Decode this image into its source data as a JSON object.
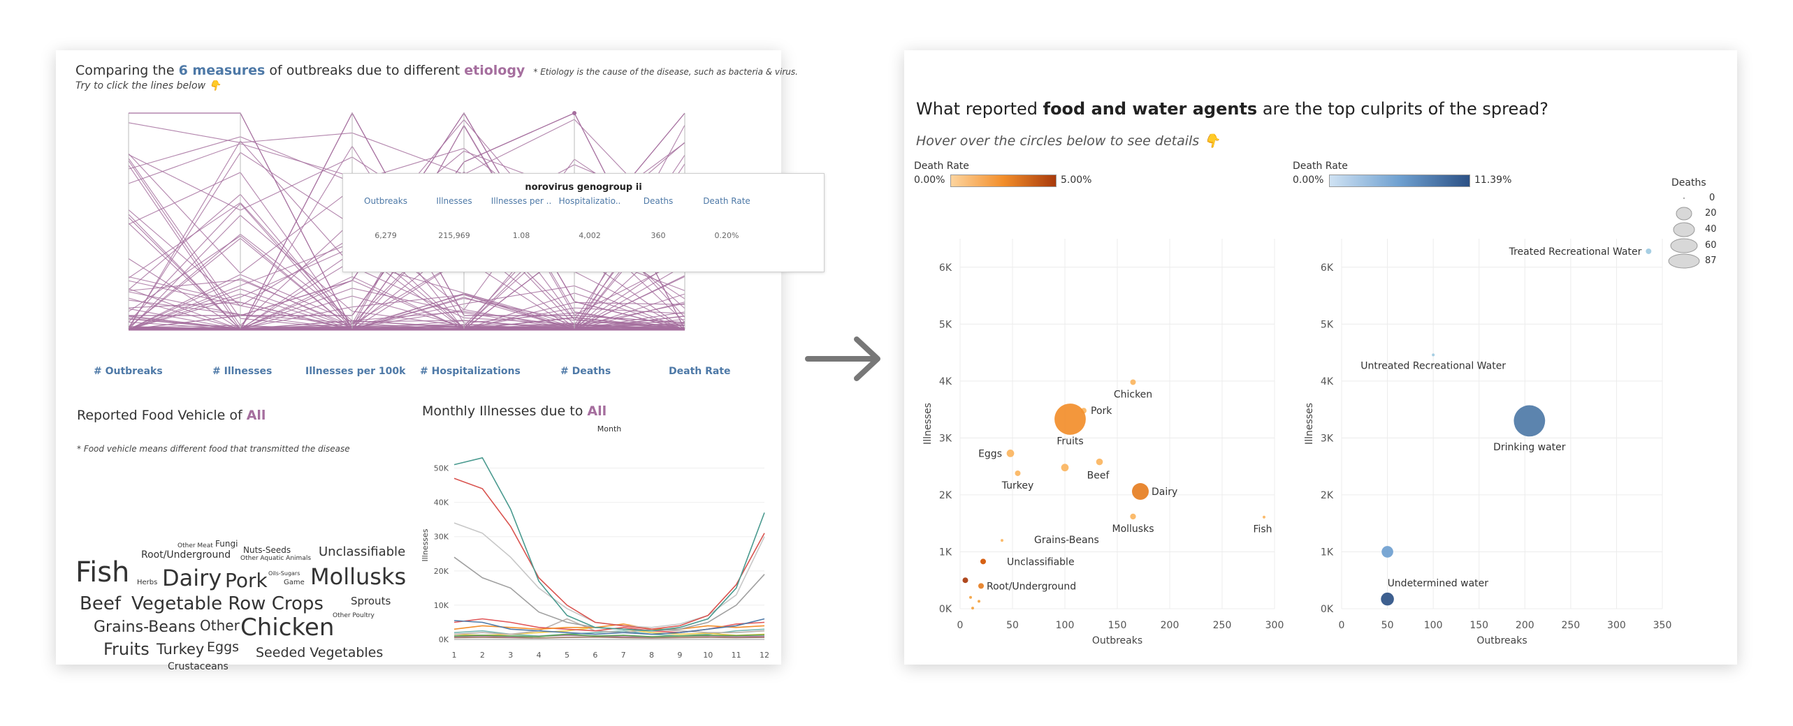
{
  "left": {
    "header": {
      "p1": "Comparing the ",
      "hl1": "6 measures",
      "p2": " of outbreaks due to different ",
      "hl2": "etiology",
      "note": "* Etiology is the cause of the disease, such as bacteria & virus.",
      "hint": "Try to click the lines below 👇"
    },
    "parallel_axes": [
      "# Outbreaks",
      "# Illnesses",
      "Illnesses per 100k",
      "# Hospitalizations",
      "# Deaths",
      "Death Rate"
    ],
    "tooltip": {
      "title": "norovirus genogroup ii",
      "columns": [
        {
          "label": "Outbreaks",
          "value": "6,279"
        },
        {
          "label": "Illnesses",
          "value": "215,969"
        },
        {
          "label": "Illnesses per ..",
          "value": "1.08"
        },
        {
          "label": "Hospitalizatio..",
          "value": "4,002"
        },
        {
          "label": "Deaths",
          "value": "360"
        },
        {
          "label": "Death Rate",
          "value": "0.20%"
        }
      ]
    },
    "food_vehicle": {
      "title_prefix": "Reported Food Vehicle of ",
      "title_value": "All",
      "note": "* Food vehicle means different food that transmitted the disease",
      "words": [
        "Fish",
        "Dairy",
        "Pork",
        "Mollusks",
        "Beef",
        "Vegetable Row Crops",
        "Chicken",
        "Grains-Beans",
        "Other",
        "Fruits",
        "Turkey",
        "Eggs",
        "Seeded Vegetables",
        "Crustaceans",
        "Unclassifiable",
        "Root/Underground",
        "Sprouts",
        "Other Meat",
        "Fungi",
        "Nuts-Seeds",
        "Other Aquatic Animals",
        "Herbs",
        "Oils-Sugars",
        "Game",
        "Other Poultry"
      ]
    },
    "monthly": {
      "title_prefix": "Monthly Illnesses due to ",
      "title_value": "All"
    }
  },
  "right": {
    "title_pre": "What reported ",
    "title_bold": "food and water agents",
    "title_post": " are the top culprits of the spread?",
    "subtitle": "Hover over the circles below to see details 👇",
    "legend_orange": {
      "title": "Death Rate",
      "min": "0.00%",
      "max": "5.00%"
    },
    "legend_blue": {
      "title": "Death Rate",
      "min": "0.00%",
      "max": "11.39%"
    },
    "deaths_legend": {
      "title": "Deaths",
      "values": [
        "0",
        "20",
        "40",
        "60",
        "87"
      ]
    }
  },
  "colors": {
    "orange": "#f28e2b",
    "blue": "#4e79a7",
    "purple": "#a56e9e"
  },
  "chart_data": [
    {
      "type": "line",
      "title": "Month",
      "xlabel": "",
      "ylabel": "Illnesses",
      "x": [
        1,
        2,
        3,
        4,
        5,
        6,
        7,
        8,
        9,
        10,
        11,
        12
      ],
      "ylim": [
        0,
        55000
      ],
      "yticks": [
        "0K",
        "10K",
        "20K",
        "30K",
        "40K",
        "50K"
      ],
      "series": [
        {
          "color": "#4a9a8f",
          "values": [
            51000,
            53000,
            38000,
            17000,
            7000,
            3500,
            3000,
            2500,
            3500,
            6000,
            15000,
            37000
          ]
        },
        {
          "color": "#d9534f",
          "values": [
            47000,
            44000,
            33000,
            18000,
            10000,
            5000,
            4000,
            3000,
            4000,
            7000,
            16000,
            31000
          ]
        },
        {
          "color": "#c7c7c7",
          "values": [
            34000,
            31000,
            24000,
            15000,
            9000,
            5000,
            4000,
            3500,
            4500,
            7000,
            13000,
            30000
          ]
        },
        {
          "color": "#a0a0a0",
          "values": [
            24000,
            18000,
            15000,
            8000,
            5000,
            3500,
            3000,
            2500,
            3000,
            5000,
            10000,
            19000
          ]
        },
        {
          "color": "#4e79a7",
          "values": [
            5500,
            5000,
            3000,
            2500,
            2000,
            1500,
            2000,
            1500,
            2000,
            3000,
            4000,
            6000
          ]
        },
        {
          "color": "#f28e2b",
          "values": [
            3000,
            4000,
            3500,
            3000,
            3500,
            3500,
            4500,
            3000,
            3000,
            4000,
            3500,
            4000
          ]
        },
        {
          "color": "#e15759",
          "values": [
            5000,
            6000,
            5000,
            3500,
            3000,
            2500,
            3500,
            2500,
            2000,
            3000,
            4500,
            5000
          ]
        },
        {
          "color": "#bab0ac",
          "values": [
            1500,
            2000,
            1500,
            2500,
            6000,
            2500,
            2000,
            3000,
            2500,
            2000,
            2000,
            2500
          ]
        },
        {
          "color": "#59a14f",
          "values": [
            1000,
            1200,
            1000,
            800,
            1500,
            1000,
            1200,
            800,
            1000,
            1200,
            1100,
            1300
          ]
        },
        {
          "color": "#edc948",
          "values": [
            1500,
            1200,
            1500,
            2000,
            2500,
            3500,
            3000,
            2000,
            1500,
            1800,
            1200,
            1500
          ]
        },
        {
          "color": "#b07aa1",
          "values": [
            800,
            1000,
            700,
            900,
            1200,
            1000,
            800,
            700,
            900,
            1000,
            800,
            900
          ]
        },
        {
          "color": "#9c755f",
          "values": [
            500,
            600,
            500,
            400,
            600,
            700,
            500,
            400,
            500,
            600,
            500,
            600
          ]
        },
        {
          "color": "#76b7b2",
          "values": [
            2000,
            2500,
            1500,
            1000,
            1500,
            2000,
            2500,
            1500,
            1000,
            1500,
            2500,
            3000
          ]
        }
      ]
    },
    {
      "type": "scatter",
      "xlabel": "Outbreaks",
      "ylabel": "Illnesses",
      "xlim": [
        0,
        300
      ],
      "ylim": [
        0,
        6500
      ],
      "xticks": [
        "0",
        "50",
        "100",
        "150",
        "200",
        "250",
        "300"
      ],
      "yticks": [
        "0K",
        "1K",
        "2K",
        "3K",
        "4K",
        "5K",
        "6K"
      ],
      "points": [
        {
          "label": "Chicken",
          "x": 165,
          "y": 3980,
          "deaths": 2,
          "color": "#fbb55f"
        },
        {
          "label": "Pork",
          "x": 118,
          "y": 3480,
          "deaths": 2,
          "color": "#fbb55f"
        },
        {
          "label": "Fruits",
          "x": 105,
          "y": 3330,
          "deaths": 87,
          "color": "#f28e2b"
        },
        {
          "label": "Eggs",
          "x": 48,
          "y": 2730,
          "deaths": 5,
          "color": "#fbb55f"
        },
        {
          "label": "Turkey",
          "x": 55,
          "y": 2380,
          "deaths": 2,
          "color": "#fbb55f"
        },
        {
          "label": "Beef",
          "x": 133,
          "y": 2580,
          "deaths": 4,
          "color": "#fbb55f"
        },
        {
          "label": "",
          "x": 100,
          "y": 2480,
          "deaths": 5,
          "color": "#fbb55f"
        },
        {
          "label": "Dairy",
          "x": 172,
          "y": 2060,
          "deaths": 25,
          "color": "#e67e22"
        },
        {
          "label": "Mollusks",
          "x": 165,
          "y": 1620,
          "deaths": 3,
          "color": "#fbb55f"
        },
        {
          "label": "Fish",
          "x": 290,
          "y": 1610,
          "deaths": 0,
          "color": "#fbb55f"
        },
        {
          "label": "Grains-Beans",
          "x": 40,
          "y": 1200,
          "deaths": 0,
          "color": "#fbb55f"
        },
        {
          "label": "Unclassifiable",
          "x": 22,
          "y": 830,
          "deaths": 2,
          "color": "#d35400"
        },
        {
          "label": "Root/Underground",
          "x": 20,
          "y": 400,
          "deaths": 1,
          "color": "#e67e22"
        },
        {
          "label": "",
          "x": 5,
          "y": 500,
          "deaths": 1,
          "color": "#a93a0c"
        },
        {
          "label": "",
          "x": 10,
          "y": 200,
          "deaths": 0,
          "color": "#f4a340"
        },
        {
          "label": "",
          "x": 18,
          "y": 130,
          "deaths": 0,
          "color": "#f4a340"
        },
        {
          "label": "",
          "x": 12,
          "y": 10,
          "deaths": 0,
          "color": "#f4a340"
        }
      ]
    },
    {
      "type": "scatter",
      "xlabel": "Outbreaks",
      "ylabel": "Illnesses",
      "xlim": [
        0,
        350
      ],
      "ylim": [
        0,
        6500
      ],
      "xticks": [
        "0",
        "50",
        "100",
        "150",
        "200",
        "250",
        "300",
        "350"
      ],
      "yticks": [
        "0K",
        "1K",
        "2K",
        "3K",
        "4K",
        "5K",
        "6K"
      ],
      "points": [
        {
          "label": "Treated Recreational Water",
          "x": 335,
          "y": 6280,
          "deaths": 2,
          "color": "#9ecae1"
        },
        {
          "label": "Untreated Recreational Water",
          "x": 100,
          "y": 4460,
          "deaths": 0,
          "color": "#9ecae1"
        },
        {
          "label": "Drinking water",
          "x": 205,
          "y": 3300,
          "deaths": 87,
          "color": "#4e79a7"
        },
        {
          "label": "",
          "x": 50,
          "y": 1000,
          "deaths": 12,
          "color": "#6fa0d0"
        },
        {
          "label": "Undetermined water",
          "x": 50,
          "y": 170,
          "deaths": 15,
          "color": "#2c5185"
        }
      ]
    }
  ]
}
